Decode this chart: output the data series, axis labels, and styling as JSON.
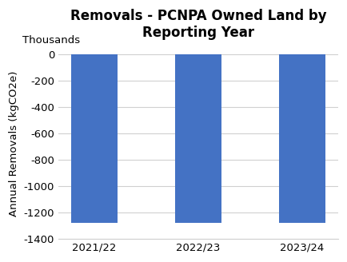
{
  "title": "Removals - PCNPA Owned Land by\nReporting Year",
  "categories": [
    "2021/22",
    "2022/23",
    "2023/24"
  ],
  "values": [
    -1280,
    -1280,
    -1280
  ],
  "bar_color": "#4472C4",
  "ylabel": "Annual Removals (kgCO2e)",
  "ylabel2": "Thousands",
  "ylim": [
    -1400,
    50
  ],
  "yticks": [
    0,
    -200,
    -400,
    -600,
    -800,
    -1000,
    -1200,
    -1400
  ],
  "background_color": "#ffffff",
  "grid_color": "#d0d0d0",
  "title_fontsize": 12,
  "label_fontsize": 9.5,
  "tick_fontsize": 9.5
}
